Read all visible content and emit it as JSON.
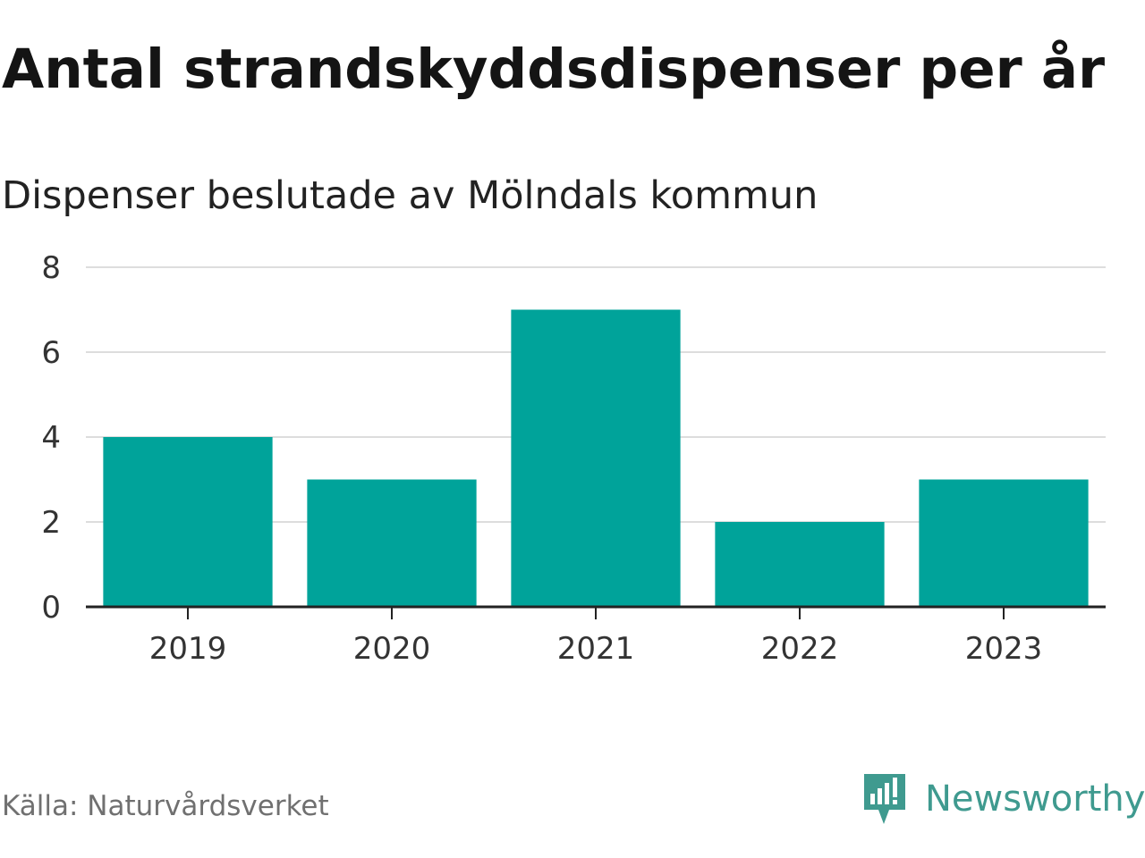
{
  "title": "Antal strandskyddsdispenser per år",
  "subtitle": "Dispenser beslutade av Mölndals kommun",
  "source": "Källa: Naturvårdsverket",
  "brand": {
    "name": "Newsworthy",
    "color": "#3f9a8f"
  },
  "colors": {
    "bar": "#00a39a",
    "grid": "#dddddd",
    "axis": "#222222",
    "text": "#333333"
  },
  "chart_data": {
    "type": "bar",
    "title": "Antal strandskyddsdispenser per år",
    "subtitle": "Dispenser beslutade av Mölndals kommun",
    "categories": [
      "2019",
      "2020",
      "2021",
      "2022",
      "2023"
    ],
    "values": [
      4,
      3,
      7,
      2,
      3
    ],
    "xlabel": "",
    "ylabel": "",
    "ylim": [
      0,
      8
    ],
    "yticks": [
      0,
      2,
      4,
      6,
      8
    ],
    "grid": true
  }
}
